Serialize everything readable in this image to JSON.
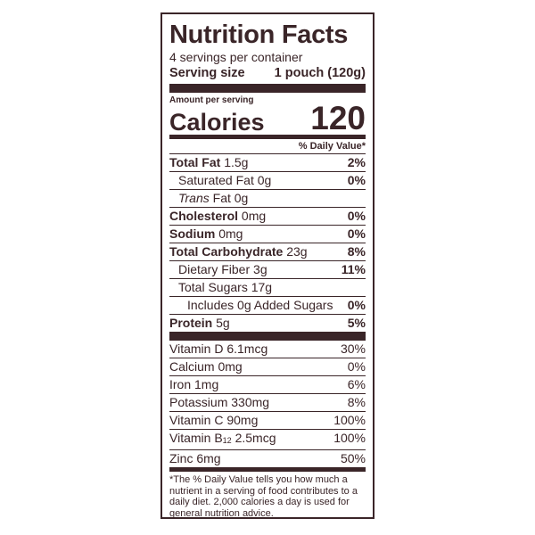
{
  "title": "Nutrition Facts",
  "servings_per_container": "4 servings per container",
  "serving_size": {
    "label": "Serving size",
    "value": "1 pouch (120g)"
  },
  "amount_per_serving": "Amount per serving",
  "calories": {
    "label": "Calories",
    "value": "120"
  },
  "daily_value_header": "% Daily Value*",
  "nutrients": [
    {
      "name": "Total Fat",
      "amount": "1.5g",
      "dv": "2%"
    },
    {
      "name": "Saturated Fat",
      "amount": "0g",
      "dv": "0%"
    },
    {
      "name": "Trans",
      "amount": "Fat 0g",
      "dv": ""
    },
    {
      "name": "Cholesterol",
      "amount": "0mg",
      "dv": "0%"
    },
    {
      "name": "Sodium",
      "amount": "0mg",
      "dv": "0%"
    },
    {
      "name": "Total Carbohydrate",
      "amount": "23g",
      "dv": "8%"
    },
    {
      "name": "Dietary Fiber",
      "amount": "3g",
      "dv": "11%"
    },
    {
      "name": "Total Sugars",
      "amount": "17g",
      "dv": ""
    },
    {
      "name": "Includes",
      "amount": "0g Added Sugars",
      "dv": "0%"
    },
    {
      "name": "Protein",
      "amount": "5g",
      "dv": "5%"
    }
  ],
  "vitamins": [
    {
      "name": "Vitamin D",
      "amount": "6.1mcg",
      "dv": "30%"
    },
    {
      "name": "Calcium",
      "amount": "0mg",
      "dv": "0%"
    },
    {
      "name": "Iron",
      "amount": "1mg",
      "dv": "6%"
    },
    {
      "name": "Potassium",
      "amount": "330mg",
      "dv": "8%"
    },
    {
      "name": "Vitamin C",
      "amount": "90mg",
      "dv": "100%"
    },
    {
      "name": "Vitamin B",
      "subscript": "12",
      "amount": "2.5mcg",
      "dv": "100%"
    },
    {
      "name": "Zinc",
      "amount": "6mg",
      "dv": "50%"
    }
  ],
  "footnote": "*The % Daily Value tells you how much a nutrient in a serving of food contributes to a daily diet. 2,000 calories a day is used for general nutrition advice.",
  "colors": {
    "ink": "#3a2528",
    "background": "#ffffff"
  }
}
